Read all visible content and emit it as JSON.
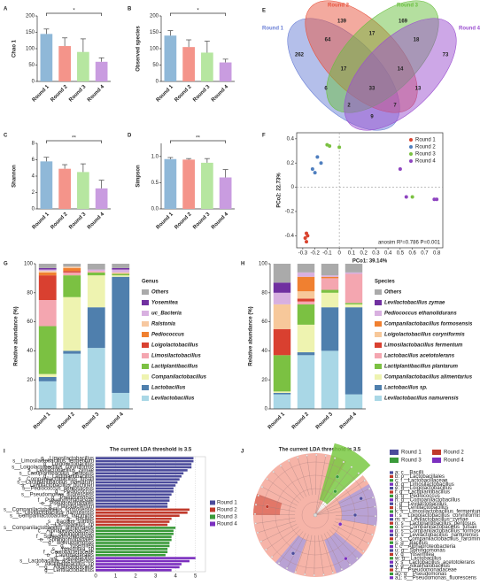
{
  "chart_data": [
    {
      "type": "bar",
      "panel": "A",
      "ylabel": "Chao 1",
      "categories": [
        "Round 1",
        "Round 2",
        "Round 3",
        "Round 4"
      ],
      "values": [
        145,
        108,
        90,
        60
      ],
      "errors": [
        15,
        25,
        40,
        12
      ],
      "colors": [
        "#8fb8d8",
        "#f4948a",
        "#b6e6a0",
        "#c99ce0"
      ],
      "ylim": [
        0,
        200
      ],
      "yticks": [
        0,
        50,
        100,
        150,
        200
      ],
      "annotation": "*"
    },
    {
      "type": "bar",
      "panel": "B",
      "ylabel": "Observed species",
      "categories": [
        "Round 1",
        "Round 2",
        "Round 3",
        "Round 4"
      ],
      "values": [
        140,
        105,
        88,
        58
      ],
      "errors": [
        15,
        22,
        35,
        10
      ],
      "colors": [
        "#8fb8d8",
        "#f4948a",
        "#b6e6a0",
        "#c99ce0"
      ],
      "ylim": [
        0,
        200
      ],
      "yticks": [
        0,
        50,
        100,
        150,
        200
      ],
      "annotation": "*"
    },
    {
      "type": "bar",
      "panel": "C",
      "ylabel": "Shannon",
      "categories": [
        "Round 1",
        "Round 2",
        "Round 3",
        "Round 4"
      ],
      "values": [
        5.8,
        4.9,
        4.5,
        2.5
      ],
      "errors": [
        0.5,
        0.5,
        1.0,
        1.0
      ],
      "colors": [
        "#8fb8d8",
        "#f4948a",
        "#b6e6a0",
        "#c99ce0"
      ],
      "ylim": [
        0,
        8
      ],
      "yticks": [
        0,
        2,
        4,
        6,
        8
      ],
      "annotation": "**"
    },
    {
      "type": "bar",
      "panel": "D",
      "ylabel": "Simpson",
      "categories": [
        "Round 1",
        "Round 2",
        "Round 3",
        "Round 4"
      ],
      "values": [
        0.95,
        0.94,
        0.88,
        0.6
      ],
      "errors": [
        0.03,
        0.02,
        0.08,
        0.15
      ],
      "colors": [
        "#8fb8d8",
        "#f4948a",
        "#b6e6a0",
        "#c99ce0"
      ],
      "ylim": [
        0,
        1.25
      ],
      "yticks": [
        {
          "value": 0,
          "label": "0.0"
        },
        0.5,
        {
          "value": 1,
          "label": "1.0"
        }
      ],
      "annotation": "**"
    },
    {
      "type": "venn",
      "panel": "E",
      "sets": [
        {
          "name": "Round 1",
          "color": "#6a7fd6"
        },
        {
          "name": "Round 2",
          "color": "#e8553f"
        },
        {
          "name": "Round 3",
          "color": "#6abf40"
        },
        {
          "name": "Round 4",
          "color": "#9b4fd0"
        }
      ],
      "counts": [
        262,
        139,
        169,
        73,
        64,
        17,
        18,
        17,
        14,
        33,
        6,
        13,
        2,
        7,
        9
      ]
    },
    {
      "type": "scatter",
      "panel": "F",
      "xlabel": "PCo1: 39.14%",
      "ylabel": "PCo2: 22.73%",
      "annotation": "anosim R²=0.786 P=0.001",
      "xlim": [
        -0.35,
        0.85
      ],
      "ylim": [
        -0.5,
        0.45
      ],
      "xticks": [
        -0.3,
        -0.2,
        -0.1,
        0,
        0.1,
        0.2,
        0.3,
        0.4,
        0.5,
        0.6,
        0.7,
        0.8
      ],
      "yticks": [
        -0.4,
        -0.2,
        0,
        0.2,
        0.4
      ],
      "series": [
        {
          "name": "Round 1",
          "color": "#d9432f",
          "x": [
            -0.27,
            -0.26,
            -0.28,
            -0.27
          ],
          "y": [
            -0.38,
            -0.4,
            -0.42,
            -0.45
          ]
        },
        {
          "name": "Round 2",
          "color": "#4f7fbf",
          "x": [
            -0.22,
            -0.18,
            -0.15,
            -0.2
          ],
          "y": [
            0.15,
            0.25,
            0.2,
            0.12
          ]
        },
        {
          "name": "Round 3",
          "color": "#7bc142",
          "x": [
            -0.1,
            -0.08,
            0.0,
            0.6
          ],
          "y": [
            0.35,
            0.34,
            0.33,
            -0.08
          ]
        },
        {
          "name": "Round 4",
          "color": "#8e44c0",
          "x": [
            0.5,
            0.55,
            0.78,
            0.8
          ],
          "y": [
            0.15,
            -0.08,
            -0.1,
            -0.1
          ]
        }
      ]
    },
    {
      "type": "stacked",
      "panel": "G",
      "ylabel": "Relative abundance (%)",
      "legend_title": "Genus",
      "categories": [
        "Round 1",
        "Round 2",
        "Round 3",
        "Round 4"
      ],
      "ylim": [
        0,
        100
      ],
      "yticks": [
        0,
        20,
        40,
        60,
        80,
        100
      ],
      "series": [
        {
          "name": "Levilactobacillus",
          "color": "#a9d7e6",
          "values": [
            19,
            38,
            42,
            11
          ]
        },
        {
          "name": "Lactobacillus",
          "color": "#4f7fad",
          "values": [
            3,
            2,
            28,
            80
          ]
        },
        {
          "name": "Companilactobacillus",
          "color": "#eef3b0",
          "values": [
            2,
            37,
            22,
            1
          ]
        },
        {
          "name": "Lactiplantibacillus",
          "color": "#7bc142",
          "values": [
            33,
            15,
            2,
            1
          ]
        },
        {
          "name": "Limosilactobacillus",
          "color": "#f4a6b0",
          "values": [
            18,
            2,
            1,
            0
          ]
        },
        {
          "name": "Loigolactobacillus",
          "color": "#d94030",
          "values": [
            17,
            1,
            0,
            0
          ]
        },
        {
          "name": "Pediococcus",
          "color": "#f08030",
          "values": [
            2,
            2,
            0,
            0
          ]
        },
        {
          "name": "Ralstonia",
          "color": "#f7c8a0",
          "values": [
            1,
            1,
            0,
            1
          ]
        },
        {
          "name": "uc_Bacteria",
          "color": "#d8b0e0",
          "values": [
            1,
            0,
            1,
            2
          ]
        },
        {
          "name": "Yosemitea",
          "color": "#7030a0",
          "values": [
            1,
            0,
            0,
            1
          ]
        },
        {
          "name": "Others",
          "color": "#aaaaaa",
          "values": [
            3,
            2,
            4,
            3
          ]
        }
      ]
    },
    {
      "type": "stacked",
      "panel": "H",
      "ylabel": "Relative abundance (%)",
      "legend_title": "Species",
      "categories": [
        "Round 1",
        "Round 2",
        "Round 3",
        "Round 4"
      ],
      "ylim": [
        0,
        100
      ],
      "yticks": [
        0,
        20,
        40,
        60,
        80,
        100
      ],
      "series": [
        {
          "name": "Levilactobacillus namurensis",
          "color": "#a9d7e6",
          "values": [
            10,
            37,
            40,
            10
          ]
        },
        {
          "name": "Lactobacillus sp.",
          "color": "#4f7fad",
          "values": [
            1,
            2,
            30,
            60
          ]
        },
        {
          "name": "Companilactobacillus alimentarius",
          "color": "#eef3b0",
          "values": [
            1,
            19,
            10,
            2
          ]
        },
        {
          "name": "Lactiplantibacillus plantarum",
          "color": "#7bc142",
          "values": [
            25,
            14,
            2,
            1
          ]
        },
        {
          "name": "Lactobacillus acetotolerans",
          "color": "#f4a6b0",
          "values": [
            0,
            2,
            8,
            20
          ]
        },
        {
          "name": "Limosilactobacillus fermentum",
          "color": "#d94030",
          "values": [
            18,
            2,
            0,
            0
          ]
        },
        {
          "name": "Loigolactobacillus coryniformis",
          "color": "#f7c89a",
          "values": [
            17,
            5,
            0,
            0
          ]
        },
        {
          "name": "Companilactobacillus formosensis",
          "color": "#f08030",
          "values": [
            0,
            10,
            1,
            0
          ]
        },
        {
          "name": "Pediococcus ethanolidurans",
          "color": "#d8b0e0",
          "values": [
            8,
            3,
            1,
            1
          ]
        },
        {
          "name": "Levilactobacillus zymae",
          "color": "#7030a0",
          "values": [
            7,
            0,
            0,
            0
          ]
        },
        {
          "name": "Others",
          "color": "#aaaaaa",
          "values": [
            13,
            6,
            8,
            6
          ]
        }
      ]
    },
    {
      "type": "lda",
      "panel": "I",
      "title": "The current LDA threshold is 3.5",
      "xlim": [
        0,
        5.5
      ],
      "xticks": [
        0,
        1,
        2,
        3,
        4,
        5
      ],
      "series": [
        {
          "name": "Round 1",
          "color": "#4b4b9b",
          "labels": [
            "g__Limosilactobacillus",
            "s__Limosilactobacillus_fermentum",
            "g__Loigolactobacillus",
            "s__Loigolactobacillus_coryniformis",
            "s__Levilactobacillus_zymae",
            "s__Lactiplantibacillus_pentosus",
            "g__Lactiplantibacillus",
            "s__Companilactobacillus_futsaii",
            "s__Lactiplantibacillus_plantarum",
            "s__Lentilactobacillus_buchneri",
            "s__Pediococcus_pentosaceus",
            "g__Pediococcus",
            "s__Pseudomonas_fluorescens",
            "g__Pseudomonas",
            "f__Pseudomonadaceae",
            "o__Pseudomonadales",
            "g__Flavobacterium"
          ],
          "values": [
            4.9,
            4.9,
            4.8,
            4.8,
            4.6,
            4.4,
            4.3,
            4.2,
            4.1,
            4.0,
            3.9,
            3.9,
            3.8,
            3.7,
            3.7,
            3.6,
            3.6
          ]
        },
        {
          "name": "Round 2",
          "color": "#c0392b",
          "labels": [
            "s__Companilactobacillus_formosensis",
            "s__Levilactobacillus_namurensis",
            "s__Companilactobacillus_farciminis",
            "g__Bacillus",
            "s__Bacillus_subtilis",
            "s__Lactobacillus_sp"
          ],
          "values": [
            4.7,
            4.6,
            4.2,
            3.8,
            3.7,
            3.6
          ]
        },
        {
          "name": "Round 3",
          "color": "#3a9a3a",
          "labels": [
            "s__Companilactobacillus_alimentarius",
            "c__Alphaproteobacteria",
            "g__Sphingomonas",
            "f__Sphingomonadaceae",
            "o__Sphingomonadales",
            "g__Brevundimonas",
            "g__Yosemitea",
            "s__Yosemitea_sp",
            "f__Caulobacteraceae",
            "o__Caulobacterales"
          ],
          "values": [
            4.0,
            3.9,
            3.9,
            3.8,
            3.8,
            3.7,
            3.7,
            3.6,
            3.6,
            3.5
          ]
        },
        {
          "name": "Round 4",
          "color": "#7b2fbf",
          "labels": [
            "g__Lactobacillus",
            "s__Lactobacillus_acetotolerans",
            "s__Alkalihalobacillus_sp",
            "g__Alkalihalobacillus",
            "g__Lentilactobacillus"
          ],
          "values": [
            5.0,
            4.7,
            4.3,
            4.2,
            3.8
          ]
        }
      ]
    },
    {
      "type": "cladogram",
      "panel": "J",
      "title": "The current LDA threshold is 3.5",
      "groups": [
        {
          "name": "Round 1",
          "color": "#4b4b9b"
        },
        {
          "name": "Round 2",
          "color": "#c0392b"
        },
        {
          "name": "Round 3",
          "color": "#3a9a3a"
        },
        {
          "name": "Round 4",
          "color": "#7b2fbf"
        }
      ],
      "taxa": [
        "a: c__Bacilli",
        "b: o__Lactobacillales",
        "c: f__Lactobacillaceae",
        "d: g__Limosilactobacillus",
        "e: g__Loigolactobacillus",
        "f: g__Lactiplantibacillus",
        "g: g__Pediococcus",
        "h: g__Companilactobacillus",
        "i: g__Levilactobacillus",
        "j: g__Lentilactobacillus",
        "k: s__Limosilactobacillus_fermentum",
        "l: s__Loigolactobacillus_coryniformis",
        "m: s__Levilactobacillus_zymae",
        "n: s__Lactiplantibacillus_pentosus",
        "o: s__Companilactobacillus_futsaii",
        "p: s__Companilactobacillus_formosensis",
        "q: s__Levilactobacillus_namurensis",
        "r: s__Companilactobacillus_farciminis",
        "s: g__Bacillus",
        "t: c__Alphaproteobacteria",
        "u: g__Sphingomonas",
        "v: g__Yosemitea",
        "w: g__Lactobacillus",
        "x: s__Lactobacillus_acetotolerans",
        "y: g__Alkalihalobacillus",
        "z: f__Pseudomonadaceae",
        "a0: g__Pseudomonas",
        "a1: s__Pseudomonas_fluorescens"
      ]
    }
  ]
}
